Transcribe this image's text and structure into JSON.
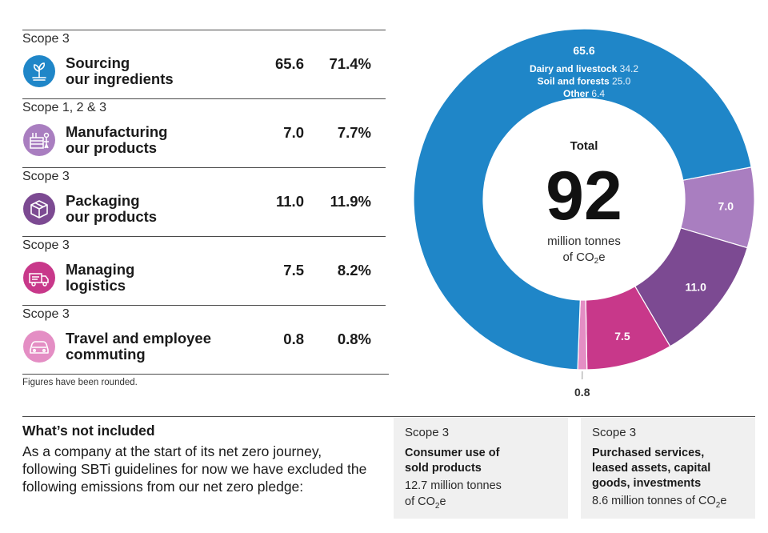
{
  "rows": [
    {
      "scope": "Scope 3",
      "name1": "Sourcing",
      "name2": "our ingredients",
      "value": "65.6",
      "pct": "71.4%",
      "icon": "plant-icon",
      "color": "#1f86c8"
    },
    {
      "scope": "Scope 1, 2 & 3",
      "name1": "Manufacturing",
      "name2": "our products",
      "value": "7.0",
      "pct": "7.7%",
      "icon": "factory-icon",
      "color": "#a97ec0"
    },
    {
      "scope": "Scope 3",
      "name1": "Packaging",
      "name2": "our products",
      "value": "11.0",
      "pct": "11.9%",
      "icon": "box-icon",
      "color": "#7c4a92"
    },
    {
      "scope": "Scope 3",
      "name1": "Managing",
      "name2": "logistics",
      "value": "7.5",
      "pct": "8.2%",
      "icon": "truck-icon",
      "color": "#c8388a"
    },
    {
      "scope": "Scope 3",
      "name1": "Travel and employee",
      "name2": "commuting",
      "value": "0.8",
      "pct": "0.8%",
      "icon": "car-icon",
      "color": "#e48ec4"
    }
  ],
  "note": "Figures have been rounded.",
  "chart_data": {
    "type": "pie",
    "title": "",
    "categories": [
      "Sourcing our ingredients",
      "Manufacturing our products",
      "Packaging our products",
      "Managing logistics",
      "Travel and employee commuting"
    ],
    "values": [
      65.6,
      7.0,
      11.0,
      7.5,
      0.8
    ],
    "value_labels": [
      "65.6",
      "7.0",
      "11.0",
      "7.5",
      "0.8"
    ],
    "colors": [
      "#1f86c8",
      "#a97ec0",
      "#7c4a92",
      "#c8388a",
      "#e48ec4"
    ],
    "breakdown": [
      {
        "label": "Dairy and livestock",
        "value": "34.2"
      },
      {
        "label": "Soil and forests",
        "value": "25.0"
      },
      {
        "label": "Other",
        "value": "6.4"
      }
    ],
    "center": {
      "label": "Total",
      "value": "92",
      "unit_line1": "million tonnes",
      "unit_line2_prefix": "of CO",
      "unit_line2_sub": "2",
      "unit_line2_suffix": "e"
    }
  },
  "excluded": {
    "title": "What’s not included",
    "body": "As a company at the start of its net zero journey, following SBTi guidelines for now we have excluded the following emissions from our net zero pledge:",
    "boxes": [
      {
        "scope": "Scope 3",
        "title": "Consumer use of sold products",
        "value_line1": "12.7 million tonnes",
        "value_prefix": "of CO",
        "value_sub": "2",
        "value_suffix": "e"
      },
      {
        "scope": "Scope 3",
        "title": "Purchased services, leased assets, capital goods, investments",
        "value_line1": "",
        "value_prefix": "8.6 million tonnes of CO",
        "value_sub": "2",
        "value_suffix": "e"
      }
    ]
  }
}
